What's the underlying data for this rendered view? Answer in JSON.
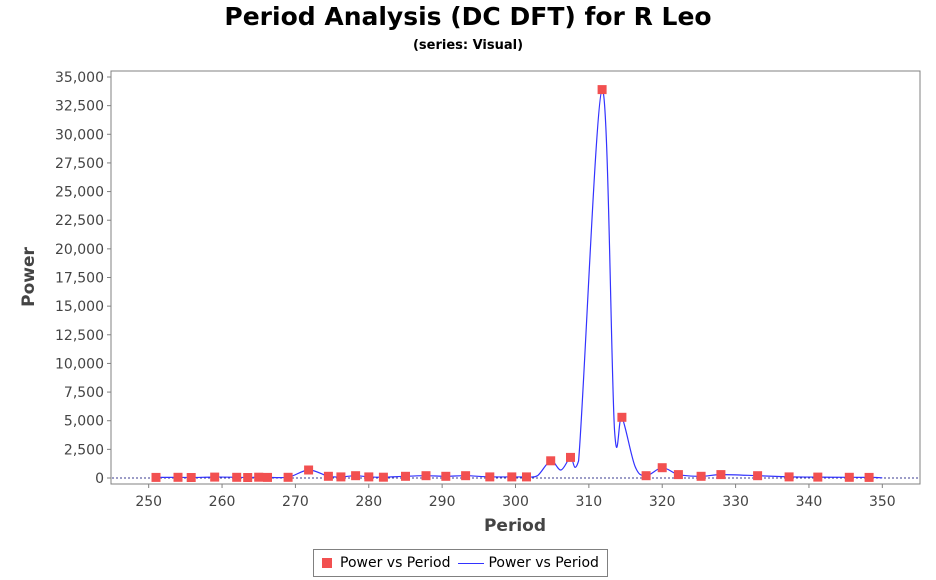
{
  "chart_data": {
    "type": "line",
    "title": "Period Analysis (DC DFT) for R Leo",
    "subtitle": "(series: Visual)",
    "xlabel": "Period",
    "ylabel": "Power",
    "xlim": [
      245,
      355
    ],
    "ylim": [
      0,
      35000
    ],
    "xticks": [
      250,
      260,
      270,
      280,
      290,
      300,
      310,
      320,
      330,
      340,
      350
    ],
    "yticks": [
      0,
      2500,
      5000,
      7500,
      10000,
      12500,
      15000,
      17500,
      20000,
      22500,
      25000,
      27500,
      30000,
      32500,
      35000
    ],
    "xtick_labels": [
      "250",
      "260",
      "270",
      "280",
      "290",
      "300",
      "310",
      "320",
      "330",
      "340",
      "350"
    ],
    "ytick_labels": [
      "0",
      "2,500",
      "5,000",
      "7,500",
      "10,000",
      "12,500",
      "15,000",
      "17,500",
      "20,000",
      "22,500",
      "25,000",
      "27,500",
      "30,000",
      "32,500",
      "35,000"
    ],
    "grid": false,
    "legend_position": "bottom-center",
    "colors": {
      "points": "#f25050",
      "line": "#3333ff",
      "border": "#808080"
    },
    "series": [
      {
        "name": "Power vs Period",
        "kind": "scatter",
        "points": [
          [
            251,
            50
          ],
          [
            254,
            60
          ],
          [
            255.8,
            40
          ],
          [
            259,
            80
          ],
          [
            262,
            60
          ],
          [
            263.5,
            40
          ],
          [
            265,
            70
          ],
          [
            266.2,
            50
          ],
          [
            269,
            60
          ],
          [
            271.8,
            700
          ],
          [
            274.5,
            150
          ],
          [
            276.2,
            100
          ],
          [
            278.2,
            200
          ],
          [
            280,
            100
          ],
          [
            282,
            70
          ],
          [
            285,
            150
          ],
          [
            287.8,
            200
          ],
          [
            290.5,
            150
          ],
          [
            293.2,
            200
          ],
          [
            296.5,
            100
          ],
          [
            299.5,
            100
          ],
          [
            301.5,
            100
          ],
          [
            304.8,
            1500
          ],
          [
            307.5,
            1800
          ],
          [
            311.8,
            33900
          ],
          [
            314.5,
            5300
          ],
          [
            317.8,
            200
          ],
          [
            320,
            900
          ],
          [
            322.2,
            300
          ],
          [
            325.3,
            150
          ],
          [
            328,
            300
          ],
          [
            333,
            200
          ],
          [
            337.3,
            100
          ],
          [
            341.2,
            80
          ],
          [
            345.5,
            60
          ],
          [
            348.2,
            50
          ]
        ]
      },
      {
        "name": "Power vs Period",
        "kind": "line",
        "points": [
          [
            251,
            50
          ],
          [
            254,
            60
          ],
          [
            255.8,
            40
          ],
          [
            259,
            80
          ],
          [
            262,
            60
          ],
          [
            263.5,
            40
          ],
          [
            265,
            70
          ],
          [
            266.2,
            50
          ],
          [
            269,
            60
          ],
          [
            271.8,
            700
          ],
          [
            274.5,
            150
          ],
          [
            276.2,
            100
          ],
          [
            278.2,
            200
          ],
          [
            280,
            100
          ],
          [
            282,
            70
          ],
          [
            285,
            150
          ],
          [
            287.8,
            200
          ],
          [
            290.5,
            150
          ],
          [
            293.2,
            200
          ],
          [
            296.5,
            100
          ],
          [
            299.5,
            100
          ],
          [
            301.5,
            100
          ],
          [
            303,
            200
          ],
          [
            304.8,
            1500
          ],
          [
            306.2,
            700
          ],
          [
            307.5,
            1800
          ],
          [
            308.6,
            1500
          ],
          [
            311.8,
            33900
          ],
          [
            313.5,
            4200
          ],
          [
            314.5,
            5300
          ],
          [
            316.3,
            1000
          ],
          [
            317.8,
            200
          ],
          [
            320,
            900
          ],
          [
            322.2,
            300
          ],
          [
            325.3,
            150
          ],
          [
            328,
            300
          ],
          [
            333,
            200
          ],
          [
            337.3,
            100
          ],
          [
            341.2,
            80
          ],
          [
            345.5,
            60
          ],
          [
            348.2,
            50
          ],
          [
            350,
            20
          ]
        ]
      }
    ]
  },
  "legend": {
    "items": [
      {
        "label": "Power vs Period"
      },
      {
        "label": "Power vs Period"
      }
    ]
  }
}
